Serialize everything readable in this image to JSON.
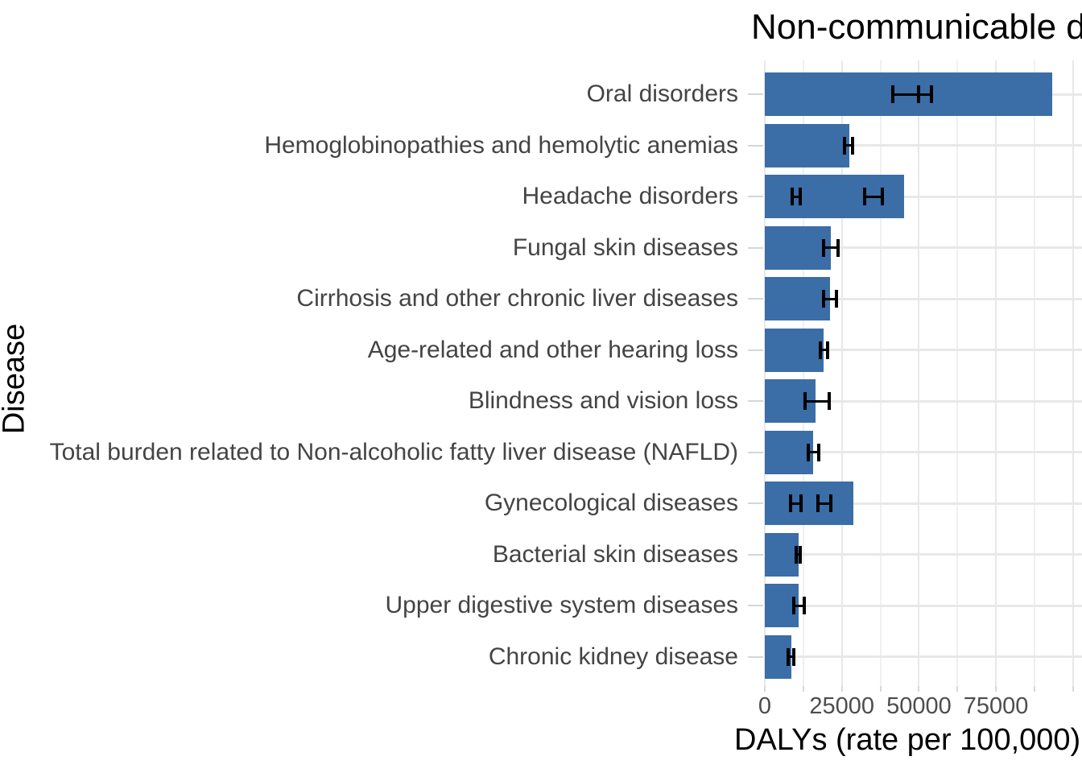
{
  "chart_data": {
    "type": "bar",
    "orientation": "horizontal",
    "title": "Non-communicable diseases",
    "xlabel": "DALYs (rate per 100,000)",
    "ylabel": "Disease",
    "x_tick_labels": [
      "0",
      "25000",
      "50000",
      "75000"
    ],
    "x_ticks": [
      0,
      25000,
      50000,
      75000
    ],
    "x_minor_step": 12500,
    "x_grid_max": 100000,
    "xlim": [
      0,
      103000
    ],
    "grid": true,
    "legend": "none",
    "bar_color": "#3b6da7",
    "error_bar_color": "#000000",
    "categories": [
      "Oral disorders",
      "Hemoglobinopathies and hemolytic anemias",
      "Headache disorders",
      "Fungal skin diseases",
      "Cirrhosis and other chronic liver diseases",
      "Age-related and other hearing loss",
      "Blindness and vision loss",
      "Total burden related to Non-alcoholic fatty liver disease (NAFLD)",
      "Gynecological diseases",
      "Bacterial skin diseases",
      "Upper digestive system diseases",
      "Chronic kidney disease"
    ],
    "values": [
      93200,
      27400,
      45200,
      21400,
      21200,
      19100,
      16500,
      15700,
      28700,
      11000,
      11000,
      8600
    ],
    "error_bars": [
      [
        [
          41500,
          49900
        ],
        [
          49900,
          54100
        ]
      ],
      [
        [
          25900,
          28500
        ]
      ],
      [
        [
          8900,
          11500
        ],
        [
          32400,
          38100
        ]
      ],
      [
        [
          19100,
          23800
        ]
      ],
      [
        [
          19100,
          23200
        ]
      ],
      [
        [
          18000,
          20400
        ]
      ],
      [
        [
          13100,
          20900
        ]
      ],
      [
        [
          14100,
          17500
        ]
      ],
      [
        [
          8400,
          11800
        ],
        [
          17200,
          21400
        ]
      ],
      [
        [
          10200,
          11500
        ]
      ],
      [
        [
          9400,
          12800
        ]
      ],
      [
        [
          7600,
          9400
        ]
      ]
    ]
  }
}
